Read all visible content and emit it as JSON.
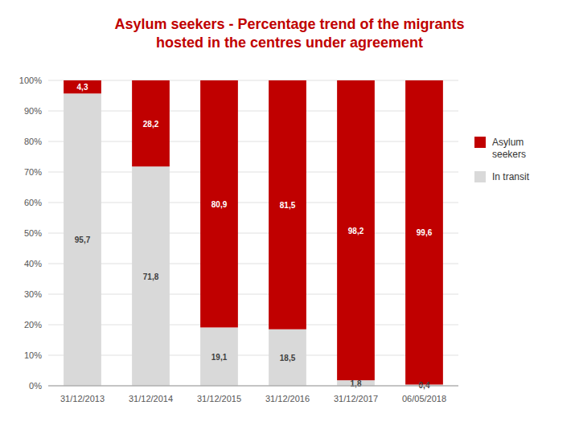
{
  "chart_data": {
    "type": "bar",
    "stacked": true,
    "title": "Asylum seekers - Percentage trend of the migrants\nhosted in the centres under agreement",
    "categories": [
      "31/12/2013",
      "31/12/2014",
      "31/12/2015",
      "31/12/2016",
      "31/12/2017",
      "06/05/2018"
    ],
    "series": [
      {
        "name": "In transit",
        "color": "#D9D9D9",
        "values": [
          95.7,
          71.8,
          19.1,
          18.5,
          1.8,
          0.4
        ],
        "value_labels": [
          "95,7",
          "71,8",
          "19,1",
          "18,5",
          "1,8",
          "0,4"
        ]
      },
      {
        "name": "Asylum\nseekers",
        "color": "#C00000",
        "values": [
          4.3,
          28.2,
          80.9,
          81.5,
          98.2,
          99.6
        ],
        "value_labels": [
          "4,3",
          "28,2",
          "80,9",
          "81,5",
          "98,2",
          "99,6"
        ]
      }
    ],
    "ylim": [
      0,
      100
    ],
    "yticks": [
      {
        "value": 0,
        "label": "0%"
      },
      {
        "value": 10,
        "label": "10%"
      },
      {
        "value": 20,
        "label": "20%"
      },
      {
        "value": 30,
        "label": "30%"
      },
      {
        "value": 40,
        "label": "40%"
      },
      {
        "value": 50,
        "label": "50%"
      },
      {
        "value": 60,
        "label": "60%"
      },
      {
        "value": 70,
        "label": "70%"
      },
      {
        "value": 80,
        "label": "80%"
      },
      {
        "value": 90,
        "label": "90%"
      },
      {
        "value": 100,
        "label": "100%"
      }
    ],
    "grid": true,
    "legend": "right",
    "data_labels": true
  }
}
